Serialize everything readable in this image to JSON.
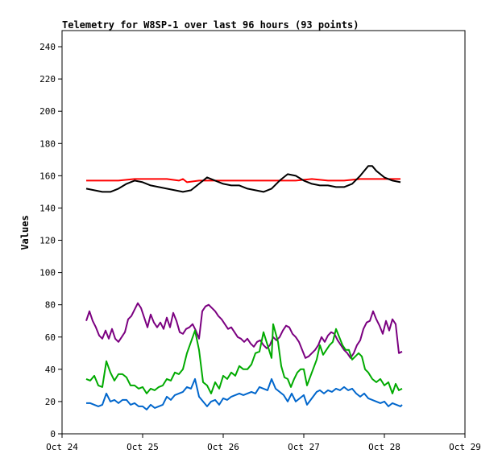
{
  "chart_data": {
    "type": "line",
    "title": "Telemetry for W8SP-1 over last 96 hours (93 points)",
    "xlabel": "",
    "ylabel": "Values",
    "xlim": [
      0,
      5
    ],
    "ylim": [
      0,
      250
    ],
    "x_ticks": [
      "Oct 24",
      "Oct 25",
      "Oct 26",
      "Oct 27",
      "Oct 28",
      "Oct 29"
    ],
    "y_ticks": [
      0,
      20,
      40,
      60,
      80,
      100,
      120,
      140,
      160,
      180,
      200,
      220,
      240
    ],
    "grid": false,
    "legend": "none",
    "series": [
      {
        "color": "#ff0000",
        "points": [
          [
            0.3,
            157
          ],
          [
            0.5,
            157
          ],
          [
            0.7,
            157
          ],
          [
            0.9,
            158
          ],
          [
            1.1,
            158
          ],
          [
            1.3,
            158
          ],
          [
            1.45,
            157
          ],
          [
            1.5,
            158
          ],
          [
            1.55,
            156
          ],
          [
            1.7,
            157
          ],
          [
            1.9,
            157
          ],
          [
            2.1,
            157
          ],
          [
            2.3,
            157
          ],
          [
            2.5,
            157
          ],
          [
            2.7,
            157
          ],
          [
            2.9,
            157
          ],
          [
            3.1,
            158
          ],
          [
            3.3,
            157
          ],
          [
            3.5,
            157
          ],
          [
            3.7,
            158
          ],
          [
            3.9,
            158
          ],
          [
            4.1,
            158
          ],
          [
            4.2,
            158
          ]
        ]
      },
      {
        "color": "#000000",
        "points": [
          [
            0.3,
            152
          ],
          [
            0.4,
            151
          ],
          [
            0.5,
            150
          ],
          [
            0.6,
            150
          ],
          [
            0.7,
            152
          ],
          [
            0.8,
            155
          ],
          [
            0.9,
            157
          ],
          [
            1.0,
            156
          ],
          [
            1.1,
            154
          ],
          [
            1.2,
            153
          ],
          [
            1.3,
            152
          ],
          [
            1.4,
            151
          ],
          [
            1.5,
            150
          ],
          [
            1.6,
            151
          ],
          [
            1.7,
            155
          ],
          [
            1.8,
            159
          ],
          [
            1.9,
            157
          ],
          [
            2.0,
            155
          ],
          [
            2.1,
            154
          ],
          [
            2.2,
            154
          ],
          [
            2.3,
            152
          ],
          [
            2.4,
            151
          ],
          [
            2.5,
            150
          ],
          [
            2.6,
            152
          ],
          [
            2.7,
            157
          ],
          [
            2.8,
            161
          ],
          [
            2.9,
            160
          ],
          [
            3.0,
            157
          ],
          [
            3.1,
            155
          ],
          [
            3.2,
            154
          ],
          [
            3.3,
            154
          ],
          [
            3.4,
            153
          ],
          [
            3.5,
            153
          ],
          [
            3.6,
            155
          ],
          [
            3.7,
            160
          ],
          [
            3.8,
            166
          ],
          [
            3.85,
            166
          ],
          [
            3.9,
            163
          ],
          [
            4.0,
            159
          ],
          [
            4.1,
            157
          ],
          [
            4.2,
            156
          ]
        ]
      },
      {
        "color": "#7b0080",
        "points": [
          [
            0.3,
            70
          ],
          [
            0.34,
            76
          ],
          [
            0.38,
            70
          ],
          [
            0.42,
            66
          ],
          [
            0.46,
            61
          ],
          [
            0.5,
            59
          ],
          [
            0.54,
            64
          ],
          [
            0.58,
            59
          ],
          [
            0.62,
            65
          ],
          [
            0.66,
            59
          ],
          [
            0.7,
            57
          ],
          [
            0.74,
            60
          ],
          [
            0.78,
            63
          ],
          [
            0.82,
            71
          ],
          [
            0.86,
            73
          ],
          [
            0.9,
            77
          ],
          [
            0.94,
            81
          ],
          [
            0.98,
            78
          ],
          [
            1.02,
            72
          ],
          [
            1.06,
            66
          ],
          [
            1.1,
            74
          ],
          [
            1.14,
            69
          ],
          [
            1.18,
            66
          ],
          [
            1.22,
            69
          ],
          [
            1.26,
            65
          ],
          [
            1.3,
            72
          ],
          [
            1.34,
            66
          ],
          [
            1.38,
            75
          ],
          [
            1.42,
            70
          ],
          [
            1.46,
            63
          ],
          [
            1.5,
            62
          ],
          [
            1.54,
            65
          ],
          [
            1.58,
            66
          ],
          [
            1.62,
            68
          ],
          [
            1.66,
            64
          ],
          [
            1.7,
            59
          ],
          [
            1.74,
            76
          ],
          [
            1.78,
            79
          ],
          [
            1.82,
            80
          ],
          [
            1.86,
            78
          ],
          [
            1.9,
            76
          ],
          [
            1.94,
            73
          ],
          [
            1.98,
            71
          ],
          [
            2.02,
            68
          ],
          [
            2.06,
            65
          ],
          [
            2.1,
            66
          ],
          [
            2.14,
            63
          ],
          [
            2.18,
            60
          ],
          [
            2.22,
            59
          ],
          [
            2.26,
            57
          ],
          [
            2.3,
            59
          ],
          [
            2.34,
            56
          ],
          [
            2.38,
            54
          ],
          [
            2.42,
            57
          ],
          [
            2.46,
            58
          ],
          [
            2.5,
            55
          ],
          [
            2.54,
            53
          ],
          [
            2.58,
            55
          ],
          [
            2.62,
            60
          ],
          [
            2.66,
            58
          ],
          [
            2.7,
            60
          ],
          [
            2.74,
            64
          ],
          [
            2.78,
            67
          ],
          [
            2.82,
            66
          ],
          [
            2.86,
            62
          ],
          [
            2.9,
            60
          ],
          [
            2.94,
            57
          ],
          [
            2.98,
            52
          ],
          [
            3.02,
            47
          ],
          [
            3.06,
            48
          ],
          [
            3.1,
            50
          ],
          [
            3.14,
            52
          ],
          [
            3.18,
            55
          ],
          [
            3.22,
            60
          ],
          [
            3.26,
            57
          ],
          [
            3.3,
            61
          ],
          [
            3.34,
            63
          ],
          [
            3.38,
            62
          ],
          [
            3.42,
            58
          ],
          [
            3.46,
            55
          ],
          [
            3.5,
            52
          ],
          [
            3.54,
            50
          ],
          [
            3.58,
            47
          ],
          [
            3.62,
            50
          ],
          [
            3.66,
            55
          ],
          [
            3.7,
            58
          ],
          [
            3.74,
            65
          ],
          [
            3.78,
            69
          ],
          [
            3.82,
            70
          ],
          [
            3.86,
            76
          ],
          [
            3.9,
            71
          ],
          [
            3.94,
            67
          ],
          [
            3.98,
            62
          ],
          [
            4.02,
            70
          ],
          [
            4.06,
            64
          ],
          [
            4.1,
            71
          ],
          [
            4.14,
            68
          ],
          [
            4.18,
            50
          ],
          [
            4.22,
            51
          ]
        ]
      },
      {
        "color": "#00aa00",
        "points": [
          [
            0.3,
            34
          ],
          [
            0.35,
            33
          ],
          [
            0.4,
            36
          ],
          [
            0.45,
            30
          ],
          [
            0.5,
            29
          ],
          [
            0.55,
            45
          ],
          [
            0.6,
            38
          ],
          [
            0.65,
            33
          ],
          [
            0.7,
            37
          ],
          [
            0.75,
            37
          ],
          [
            0.8,
            35
          ],
          [
            0.85,
            30
          ],
          [
            0.9,
            30
          ],
          [
            0.95,
            28
          ],
          [
            1.0,
            29
          ],
          [
            1.05,
            25
          ],
          [
            1.1,
            28
          ],
          [
            1.15,
            27
          ],
          [
            1.2,
            29
          ],
          [
            1.25,
            30
          ],
          [
            1.3,
            34
          ],
          [
            1.35,
            33
          ],
          [
            1.4,
            38
          ],
          [
            1.45,
            37
          ],
          [
            1.5,
            40
          ],
          [
            1.55,
            50
          ],
          [
            1.6,
            57
          ],
          [
            1.65,
            64
          ],
          [
            1.7,
            52
          ],
          [
            1.75,
            32
          ],
          [
            1.8,
            30
          ],
          [
            1.85,
            25
          ],
          [
            1.9,
            32
          ],
          [
            1.95,
            28
          ],
          [
            2.0,
            36
          ],
          [
            2.05,
            34
          ],
          [
            2.1,
            38
          ],
          [
            2.15,
            36
          ],
          [
            2.2,
            42
          ],
          [
            2.25,
            40
          ],
          [
            2.3,
            40
          ],
          [
            2.35,
            43
          ],
          [
            2.4,
            50
          ],
          [
            2.45,
            51
          ],
          [
            2.5,
            63
          ],
          [
            2.55,
            55
          ],
          [
            2.6,
            47
          ],
          [
            2.62,
            68
          ],
          [
            2.68,
            57
          ],
          [
            2.72,
            42
          ],
          [
            2.76,
            35
          ],
          [
            2.8,
            34
          ],
          [
            2.84,
            29
          ],
          [
            2.88,
            34
          ],
          [
            2.92,
            38
          ],
          [
            2.96,
            40
          ],
          [
            3.0,
            40
          ],
          [
            3.04,
            30
          ],
          [
            3.1,
            38
          ],
          [
            3.16,
            46
          ],
          [
            3.2,
            55
          ],
          [
            3.24,
            49
          ],
          [
            3.28,
            52
          ],
          [
            3.32,
            55
          ],
          [
            3.36,
            57
          ],
          [
            3.4,
            65
          ],
          [
            3.44,
            60
          ],
          [
            3.48,
            55
          ],
          [
            3.52,
            52
          ],
          [
            3.56,
            52
          ],
          [
            3.6,
            46
          ],
          [
            3.64,
            48
          ],
          [
            3.68,
            50
          ],
          [
            3.72,
            48
          ],
          [
            3.76,
            40
          ],
          [
            3.8,
            38
          ],
          [
            3.85,
            34
          ],
          [
            3.9,
            32
          ],
          [
            3.95,
            34
          ],
          [
            4.0,
            30
          ],
          [
            4.05,
            32
          ],
          [
            4.1,
            25
          ],
          [
            4.14,
            31
          ],
          [
            4.18,
            27
          ],
          [
            4.22,
            28
          ]
        ]
      },
      {
        "color": "#0066cc",
        "points": [
          [
            0.3,
            19
          ],
          [
            0.35,
            19
          ],
          [
            0.4,
            18
          ],
          [
            0.45,
            17
          ],
          [
            0.5,
            18
          ],
          [
            0.55,
            25
          ],
          [
            0.6,
            20
          ],
          [
            0.65,
            21
          ],
          [
            0.7,
            19
          ],
          [
            0.75,
            21
          ],
          [
            0.8,
            21
          ],
          [
            0.85,
            18
          ],
          [
            0.9,
            19
          ],
          [
            0.95,
            17
          ],
          [
            1.0,
            17
          ],
          [
            1.05,
            15
          ],
          [
            1.1,
            18
          ],
          [
            1.15,
            16
          ],
          [
            1.2,
            17
          ],
          [
            1.25,
            18
          ],
          [
            1.3,
            23
          ],
          [
            1.35,
            21
          ],
          [
            1.4,
            24
          ],
          [
            1.45,
            25
          ],
          [
            1.5,
            26
          ],
          [
            1.55,
            29
          ],
          [
            1.6,
            28
          ],
          [
            1.65,
            34
          ],
          [
            1.7,
            23
          ],
          [
            1.75,
            20
          ],
          [
            1.8,
            17
          ],
          [
            1.85,
            20
          ],
          [
            1.9,
            21
          ],
          [
            1.95,
            18
          ],
          [
            2.0,
            22
          ],
          [
            2.05,
            21
          ],
          [
            2.1,
            23
          ],
          [
            2.15,
            24
          ],
          [
            2.2,
            25
          ],
          [
            2.25,
            24
          ],
          [
            2.3,
            25
          ],
          [
            2.35,
            26
          ],
          [
            2.4,
            25
          ],
          [
            2.45,
            29
          ],
          [
            2.5,
            28
          ],
          [
            2.55,
            27
          ],
          [
            2.6,
            34
          ],
          [
            2.65,
            28
          ],
          [
            2.7,
            26
          ],
          [
            2.75,
            24
          ],
          [
            2.8,
            20
          ],
          [
            2.85,
            25
          ],
          [
            2.9,
            20
          ],
          [
            2.95,
            22
          ],
          [
            3.0,
            24
          ],
          [
            3.04,
            18
          ],
          [
            3.1,
            22
          ],
          [
            3.16,
            26
          ],
          [
            3.2,
            27
          ],
          [
            3.25,
            25
          ],
          [
            3.3,
            27
          ],
          [
            3.35,
            26
          ],
          [
            3.4,
            28
          ],
          [
            3.45,
            27
          ],
          [
            3.5,
            29
          ],
          [
            3.55,
            27
          ],
          [
            3.6,
            28
          ],
          [
            3.65,
            25
          ],
          [
            3.7,
            23
          ],
          [
            3.75,
            25
          ],
          [
            3.8,
            22
          ],
          [
            3.85,
            21
          ],
          [
            3.9,
            20
          ],
          [
            3.95,
            19
          ],
          [
            4.0,
            20
          ],
          [
            4.05,
            17
          ],
          [
            4.1,
            19
          ],
          [
            4.15,
            18
          ],
          [
            4.2,
            17
          ],
          [
            4.22,
            18
          ]
        ]
      }
    ]
  }
}
